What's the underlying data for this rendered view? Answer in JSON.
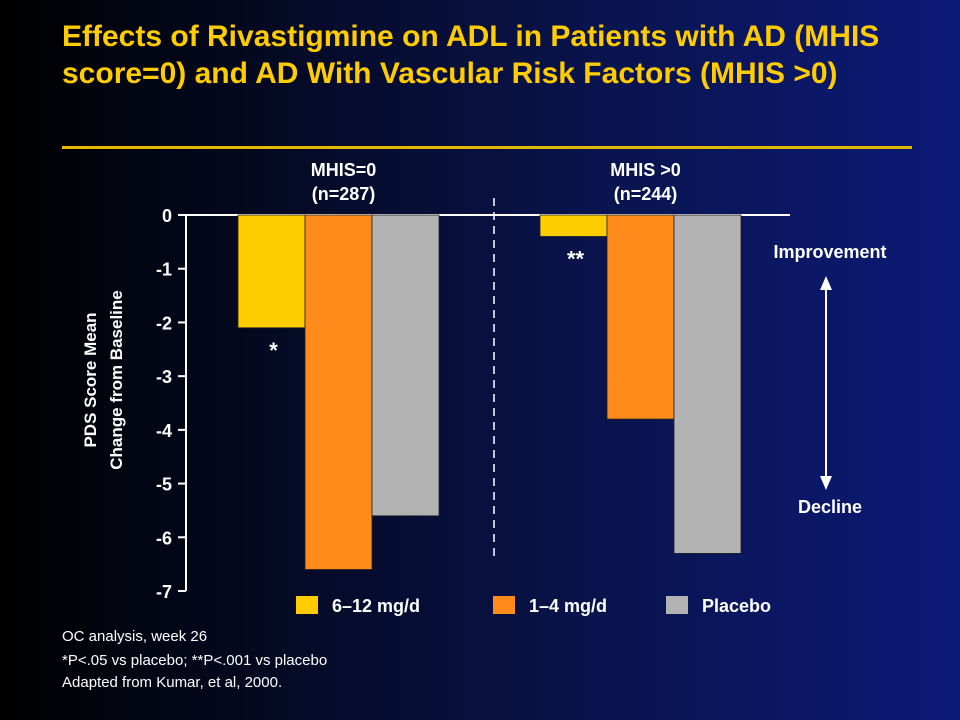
{
  "title": "Effects of Rivastigmine on ADL in Patients with AD (MHIS score=0) and AD With Vascular Risk Factors (MHIS >0)",
  "footnotes": [
    "OC analysis, week 26",
    "*P<.05 vs placebo; **P<.001 vs placebo",
    "Adapted from Kumar, et al, 2000."
  ],
  "colors": {
    "title": "#ffcc00",
    "series": [
      "#ffcc00",
      "#ff8c1a",
      "#b3b3b3"
    ]
  },
  "chart_data": {
    "type": "bar",
    "ylabel_line1": "PDS Score Mean",
    "ylabel_line2": "Change from Baseline",
    "ylim": [
      -7,
      0
    ],
    "yticks": [
      0,
      -1,
      -2,
      -3,
      -4,
      -5,
      -6,
      -7
    ],
    "categories": [
      {
        "line1": "MHIS=0",
        "line2": "(n=287)"
      },
      {
        "line1": "MHIS >0",
        "line2": "(n=244)"
      }
    ],
    "series": [
      {
        "name": "6–12 mg/d",
        "values": [
          -2.1,
          -0.4
        ]
      },
      {
        "name": "1–4 mg/d",
        "values": [
          -6.6,
          -3.8
        ]
      },
      {
        "name": "Placebo",
        "values": [
          -5.6,
          -6.3
        ]
      }
    ],
    "annotations": [
      {
        "text": "*",
        "category": 0,
        "series": 0
      },
      {
        "text": "**",
        "category": 1,
        "series": 0
      }
    ],
    "arrow_top_label": "Improvement",
    "arrow_bottom_label": "Decline",
    "grid": false,
    "legend": "bottom"
  }
}
